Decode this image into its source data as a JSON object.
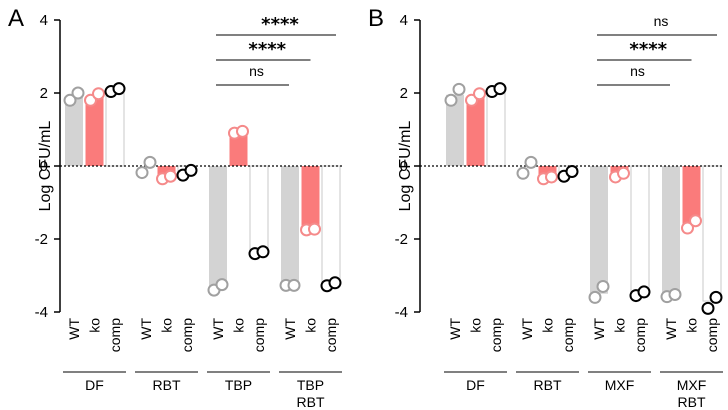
{
  "chart_data": [
    {
      "type": "bar",
      "panel": "A",
      "ylabel": "Log CFU/mL",
      "ylim": [
        -4,
        4
      ],
      "yticks": [
        -4,
        -2,
        0,
        2,
        4
      ],
      "ytick_labels": [
        "-4",
        "-2",
        "0",
        "2",
        "4"
      ],
      "subcategories": [
        "WT",
        "ko",
        "comp"
      ],
      "colors": {
        "WT": "#d3d3d3",
        "ko": "#fa7b7b",
        "comp": "#ffffff"
      },
      "point_colors": {
        "WT": "#a0a0a0",
        "ko": "#f58a8a",
        "comp": "#000000"
      },
      "groups": [
        {
          "label": "DF",
          "values": [
            1.9,
            1.9,
            2.08
          ],
          "points": [
            [
              1.8,
              2.0
            ],
            [
              1.8,
              1.98
            ],
            [
              2.04,
              2.12
            ]
          ]
        },
        {
          "label": "RBT",
          "values": [
            0.0,
            -0.3,
            -0.2
          ],
          "points": [
            [
              -0.18,
              0.1
            ],
            [
              -0.35,
              -0.28
            ],
            [
              -0.25,
              -0.12
            ]
          ]
        },
        {
          "label": "TBP",
          "values": [
            -3.35,
            0.92,
            -2.38
          ],
          "points": [
            [
              -3.4,
              -3.25
            ],
            [
              0.9,
              0.95
            ],
            [
              -2.4,
              -2.35
            ]
          ]
        },
        {
          "label": "TBP RBT",
          "lines": [
            "TBP",
            "RBT"
          ],
          "values": [
            -3.27,
            -1.75,
            -3.22
          ],
          "points": [
            [
              -3.27,
              -3.27
            ],
            [
              -1.75,
              -1.73
            ],
            [
              -3.28,
              -3.2
            ]
          ]
        }
      ],
      "significance": [
        {
          "text": "ns",
          "from_group": 2,
          "from_bar": 0,
          "to_group": 3,
          "to_bar": 0
        },
        {
          "text": "****",
          "from_group": 2,
          "from_bar": 0,
          "to_group": 3,
          "to_bar": 1
        },
        {
          "text": "****",
          "from_group": 2,
          "from_bar": 0,
          "to_group": 3,
          "to_bar": 2
        }
      ]
    },
    {
      "type": "bar",
      "panel": "B",
      "ylabel": "Log CFU/mL",
      "ylim": [
        -4,
        4
      ],
      "yticks": [
        -4,
        -2,
        0,
        2,
        4
      ],
      "ytick_labels": [
        "-4",
        "-2",
        "0",
        "2",
        "4"
      ],
      "subcategories": [
        "WT",
        "ko",
        "comp"
      ],
      "colors": {
        "WT": "#d3d3d3",
        "ko": "#fa7b7b",
        "comp": "#ffffff"
      },
      "point_colors": {
        "WT": "#a0a0a0",
        "ko": "#f58a8a",
        "comp": "#000000"
      },
      "groups": [
        {
          "label": "DF",
          "values": [
            1.95,
            1.9,
            2.08
          ],
          "points": [
            [
              1.8,
              2.1
            ],
            [
              1.8,
              1.98
            ],
            [
              2.04,
              2.12
            ]
          ]
        },
        {
          "label": "RBT",
          "values": [
            0.0,
            -0.3,
            -0.2
          ],
          "points": [
            [
              -0.2,
              0.1
            ],
            [
              -0.35,
              -0.3
            ],
            [
              -0.28,
              -0.15
            ]
          ]
        },
        {
          "label": "MXF",
          "values": [
            -3.5,
            -0.25,
            -3.5
          ],
          "points": [
            [
              -3.6,
              -3.3
            ],
            [
              -0.3,
              -0.2
            ],
            [
              -3.55,
              -3.45
            ]
          ]
        },
        {
          "label": "MXF RBT",
          "lines": [
            "MXF",
            "RBT"
          ],
          "values": [
            -3.55,
            -1.6,
            -3.7
          ],
          "points": [
            [
              -3.58,
              -3.52
            ],
            [
              -1.7,
              -1.5
            ],
            [
              -3.9,
              -3.6
            ]
          ]
        }
      ],
      "significance": [
        {
          "text": "ns",
          "from_group": 2,
          "from_bar": 0,
          "to_group": 3,
          "to_bar": 0
        },
        {
          "text": "****",
          "from_group": 2,
          "from_bar": 0,
          "to_group": 3,
          "to_bar": 1
        },
        {
          "text": "ns",
          "from_group": 2,
          "from_bar": 0,
          "to_group": 3,
          "to_bar": 2
        }
      ]
    }
  ]
}
